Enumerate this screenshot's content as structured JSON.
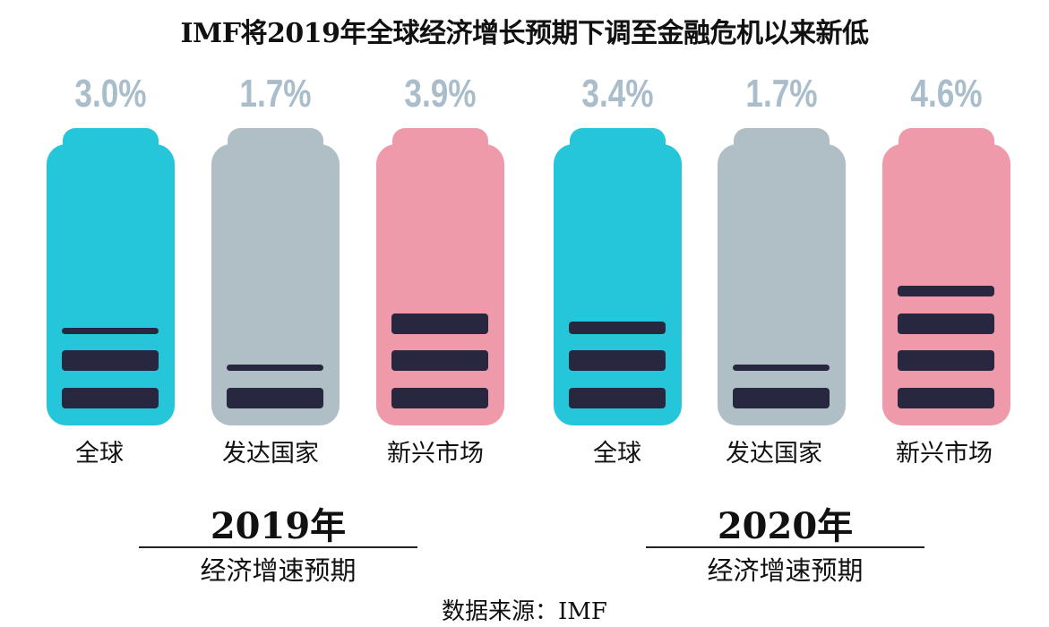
{
  "chart_data": {
    "type": "bar",
    "title": "IMF将2019年全球经济增长预期下调至金融危机以来新低",
    "groups": [
      {
        "year": "2019年",
        "subtitle": "经济增速预期",
        "categories": [
          "全球",
          "发达国家",
          "新兴市场"
        ],
        "values": [
          3.0,
          1.7,
          3.9
        ],
        "labels": [
          "3.0%",
          "1.7%",
          "3.9%"
        ]
      },
      {
        "year": "2020年",
        "subtitle": "经济增速预期",
        "categories": [
          "全球",
          "发达国家",
          "新兴市场"
        ],
        "values": [
          3.4,
          1.7,
          4.6
        ],
        "labels": [
          "3.4%",
          "1.7%",
          "4.6%"
        ]
      }
    ],
    "colors": [
      "#26c6da",
      "#b0bec5",
      "#ef9aaa"
    ],
    "bar_color": "#272840",
    "unit": "%"
  },
  "source": "数据来源：IMF"
}
